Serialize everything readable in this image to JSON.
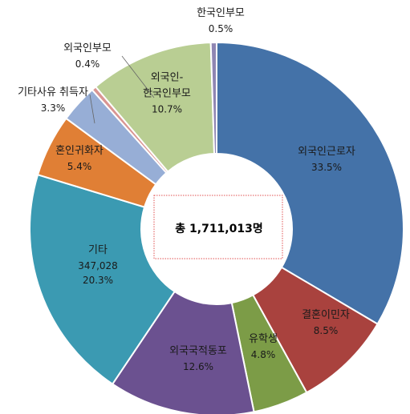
{
  "chart_data": {
    "type": "pie",
    "donut": true,
    "center_label": "총  1,711,013명",
    "slices": [
      {
        "name": "외국인근로자",
        "value": 33.5,
        "value_label": "33.5%",
        "color": "#4472A8"
      },
      {
        "name": "결혼이민자",
        "value": 8.5,
        "value_label": "8.5%",
        "color": "#A9423E"
      },
      {
        "name": "유학생",
        "value": 4.8,
        "value_label": "4.8%",
        "color": "#7C9C47"
      },
      {
        "name": "외국국적동포",
        "value": 12.6,
        "value_label": "12.6%",
        "color": "#6B5190"
      },
      {
        "name": "기타",
        "value": 20.3,
        "count_label": "347,028",
        "value_label": "20.3%",
        "color": "#3B9AB2"
      },
      {
        "name": "혼인귀화자",
        "value": 5.4,
        "value_label": "5.4%",
        "color": "#E07F35"
      },
      {
        "name": "기타사유 취득자",
        "value": 3.3,
        "value_label": "3.3%",
        "color": "#97AED6"
      },
      {
        "name": "외국인부모",
        "value": 0.4,
        "value_label": "0.4%",
        "color": "#D99592"
      },
      {
        "name": "외국인-\n한국인부모",
        "value": 10.7,
        "value_label": "10.7%",
        "color": "#B9CE93"
      },
      {
        "name": "한국인부모",
        "value": 0.5,
        "value_label": "0.5%",
        "color": "#8F86B3"
      }
    ]
  }
}
